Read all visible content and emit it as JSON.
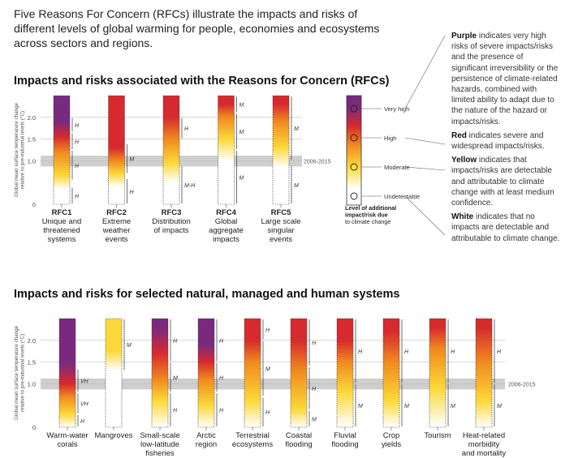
{
  "intro": "Five Reasons For Concern (RFCs) illustrate the impacts and risks of different levels of global warming for people, economies and ecosystems across sectors and regions.",
  "top_title": "Impacts and risks associated with the Reasons for Concern (RFCs)",
  "bottom_title": "Impacts and risks for selected natural, managed and human systems",
  "y_axis_label": [
    "Global mean surface temperature change",
    "relative to pre-industrial levels (°C)"
  ],
  "band_label": "2006-2015",
  "colors": {
    "white": "#ffffff",
    "yellow": "#fcd93a",
    "orange": "#f08a1e",
    "red": "#d62a2e",
    "purple": "#7a2a7e",
    "band": "#cfcfcf",
    "grid": "#bdbdbd"
  },
  "legend": {
    "levels": [
      "Very high",
      "High",
      "Moderate",
      "Undetectable"
    ],
    "title": "Level of additional impact/risk due to climate change",
    "title_lines": [
      "Level of additional",
      "impact/risk due",
      "to climate change"
    ]
  },
  "notes": [
    {
      "key": "Purple",
      "text": " indicates very high risks of severe impacts/risks and the presence of significant irreversibility or the persistence of climate-related hazards, combined with limited ability to adapt due to the nature of the hazard or impacts/risks."
    },
    {
      "key": "Red",
      "text": " indicates severe and widespread impacts/risks."
    },
    {
      "key": "Yellow",
      "text": " indicates that impacts/risks are detectable and attributable to climate change with at least medium confidence."
    },
    {
      "key": "White",
      "text": " indicates that no impacts are detectable and attributable to climate change."
    }
  ],
  "chart_data": [
    {
      "type": "bar",
      "title": "Impacts and risks associated with the Reasons for Concern (RFCs)",
      "ylabel": "Global mean surface temperature change relative to pre-industrial levels (°C)",
      "yticks": [
        0,
        1.0,
        1.5,
        2.0
      ],
      "ylim": [
        0,
        2.5
      ],
      "band": {
        "label": "2006-2015",
        "range": [
          0.87,
          1.12
        ]
      },
      "categories": [
        {
          "name": [
            "RFC1"
          ],
          "sub": [
            "Unique and",
            "threatened",
            "systems"
          ],
          "stops": [
            [
              0,
              "white"
            ],
            [
              0.35,
              "white"
            ],
            [
              0.65,
              "yellow"
            ],
            [
              1.2,
              "orange"
            ],
            [
              1.55,
              "red"
            ],
            [
              1.9,
              "purple"
            ],
            [
              2.5,
              "purple"
            ]
          ],
          "conf": [
            {
              "y": [
                0,
                0.4
              ],
              "label": "H"
            },
            {
              "y": [
                0.55,
                1.25
              ],
              "label": "H"
            },
            {
              "y": [
                1.25,
                1.65
              ],
              "label": "H"
            },
            {
              "y": [
                1.65,
                2.0
              ],
              "label": "H"
            }
          ]
        },
        {
          "name": [
            "RFC2"
          ],
          "sub": [
            "Extreme",
            "weather",
            "events"
          ],
          "stops": [
            [
              0,
              "white"
            ],
            [
              0.4,
              "white"
            ],
            [
              0.7,
              "yellow"
            ],
            [
              1.0,
              "orange"
            ],
            [
              1.3,
              "red"
            ],
            [
              2.5,
              "red"
            ]
          ],
          "conf": [
            {
              "y": [
                0,
                0.6
              ],
              "label": "H"
            },
            {
              "y": [
                0.7,
                1.4
              ],
              "label": "M"
            }
          ]
        },
        {
          "name": [
            "RFC3"
          ],
          "sub": [
            "Distribution",
            "of impacts"
          ],
          "stops": [
            [
              0,
              "white"
            ],
            [
              0.5,
              "white"
            ],
            [
              0.95,
              "yellow"
            ],
            [
              1.5,
              "orange"
            ],
            [
              2.0,
              "red"
            ],
            [
              2.5,
              "red"
            ]
          ],
          "conf": [
            {
              "y": [
                0,
                0.9
              ],
              "label": "M-H"
            },
            {
              "y": [
                1.5,
                2.0
              ],
              "label": "H"
            }
          ]
        },
        {
          "name": [
            "RFC4"
          ],
          "sub": [
            "Global",
            "aggregate",
            "impacts"
          ],
          "stops": [
            [
              0,
              "white"
            ],
            [
              1.0,
              "white"
            ],
            [
              1.5,
              "yellow"
            ],
            [
              2.0,
              "orange"
            ],
            [
              2.3,
              "red"
            ],
            [
              2.5,
              "red"
            ]
          ],
          "conf": [
            {
              "y": [
                0,
                1.25
              ],
              "label": "M"
            },
            {
              "y": [
                1.25,
                2.1
              ],
              "label": "M"
            },
            {
              "y": [
                2.1,
                2.5
              ],
              "label": "M"
            }
          ]
        },
        {
          "name": [
            "RFC5"
          ],
          "sub": [
            "Large scale",
            "singular",
            "events"
          ],
          "stops": [
            [
              0,
              "white"
            ],
            [
              0.85,
              "white"
            ],
            [
              1.3,
              "yellow"
            ],
            [
              1.9,
              "orange"
            ],
            [
              2.3,
              "red"
            ],
            [
              2.5,
              "red"
            ]
          ],
          "conf": [
            {
              "y": [
                0,
                0.9
              ],
              "label": "M"
            },
            {
              "y": [
                1.0,
                2.5
              ],
              "label": "M"
            }
          ]
        }
      ]
    },
    {
      "type": "bar",
      "title": "Impacts and risks for selected natural, managed and human systems",
      "ylabel": "Global mean surface temperature change relative to pre-industrial levels (°C)",
      "yticks": [
        0,
        1.0,
        1.5,
        2.0
      ],
      "ylim": [
        0,
        2.5
      ],
      "band": {
        "label": "2006-2015",
        "range": [
          0.87,
          1.12
        ]
      },
      "categories": [
        {
          "name": [
            "Warm-water",
            "corals"
          ],
          "stops": [
            [
              0,
              "white"
            ],
            [
              0.3,
              "yellow"
            ],
            [
              0.7,
              "orange"
            ],
            [
              1.0,
              "red"
            ],
            [
              1.5,
              "purple"
            ],
            [
              2.5,
              "purple"
            ]
          ],
          "conf": [
            {
              "y": [
                0,
                0.3
              ],
              "label": "H"
            },
            {
              "y": [
                0.3,
                0.8
              ],
              "label": "VH"
            },
            {
              "y": [
                0.8,
                1.35
              ],
              "label": "VH"
            }
          ]
        },
        {
          "name": [
            "Mangroves"
          ],
          "stops": [
            [
              0,
              "white"
            ],
            [
              1.3,
              "white"
            ],
            [
              1.75,
              "yellow"
            ],
            [
              2.5,
              "yellow"
            ]
          ],
          "conf": [
            {
              "y": [
                1.3,
                2.5
              ],
              "label": "M"
            }
          ]
        },
        {
          "name": [
            "Small-scale",
            "low-latitude",
            "fisheries"
          ],
          "stops": [
            [
              0,
              "white"
            ],
            [
              0.6,
              "yellow"
            ],
            [
              1.1,
              "orange"
            ],
            [
              1.7,
              "red"
            ],
            [
              2.3,
              "purple"
            ],
            [
              2.5,
              "purple"
            ]
          ],
          "conf": [
            {
              "y": [
                0,
                0.8
              ],
              "label": "H"
            },
            {
              "y": [
                0.8,
                1.5
              ],
              "label": "M"
            },
            {
              "y": [
                1.5,
                2.5
              ],
              "label": "H"
            }
          ]
        },
        {
          "name": [
            "Arctic",
            "region"
          ],
          "stops": [
            [
              0,
              "white"
            ],
            [
              0.5,
              "yellow"
            ],
            [
              1.1,
              "orange"
            ],
            [
              1.5,
              "red"
            ],
            [
              1.9,
              "purple"
            ],
            [
              2.5,
              "purple"
            ]
          ],
          "conf": [
            {
              "y": [
                0,
                0.8
              ],
              "label": "H"
            },
            {
              "y": [
                0.8,
                1.5
              ],
              "label": "H"
            },
            {
              "y": [
                1.5,
                2.5
              ],
              "label": "H"
            }
          ]
        },
        {
          "name": [
            "Terrestrial",
            "ecosystems"
          ],
          "stops": [
            [
              0,
              "white"
            ],
            [
              0.6,
              "yellow"
            ],
            [
              1.5,
              "orange"
            ],
            [
              2.0,
              "red"
            ],
            [
              2.5,
              "red"
            ]
          ],
          "conf": [
            {
              "y": [
                0,
                0.7
              ],
              "label": "H"
            },
            {
              "y": [
                0.7,
                2.0
              ],
              "label": "M"
            },
            {
              "y": [
                2.0,
                2.5
              ],
              "label": "H"
            }
          ]
        },
        {
          "name": [
            "Coastal",
            "flooding"
          ],
          "stops": [
            [
              0,
              "white"
            ],
            [
              0.4,
              "yellow"
            ],
            [
              1.3,
              "orange"
            ],
            [
              2.0,
              "red"
            ],
            [
              2.5,
              "red"
            ]
          ],
          "conf": [
            {
              "y": [
                0,
                0.4
              ],
              "label": "M"
            },
            {
              "y": [
                0.4,
                1.4
              ],
              "label": "H"
            },
            {
              "y": [
                1.4,
                2.5
              ],
              "label": "H"
            }
          ]
        },
        {
          "name": [
            "Fluvial",
            "flooding"
          ],
          "stops": [
            [
              0,
              "white"
            ],
            [
              0.8,
              "yellow"
            ],
            [
              1.5,
              "orange"
            ],
            [
              2.0,
              "red"
            ],
            [
              2.5,
              "red"
            ]
          ],
          "conf": [
            {
              "y": [
                0,
                1.0
              ],
              "label": "M"
            },
            {
              "y": [
                1.0,
                2.5
              ],
              "label": "H"
            }
          ]
        },
        {
          "name": [
            "Crop",
            "yields"
          ],
          "stops": [
            [
              0,
              "white"
            ],
            [
              0.6,
              "yellow"
            ],
            [
              1.5,
              "orange"
            ],
            [
              2.2,
              "red"
            ],
            [
              2.5,
              "red"
            ]
          ],
          "conf": [
            {
              "y": [
                0,
                1.0
              ],
              "label": "M"
            },
            {
              "y": [
                1.0,
                2.5
              ],
              "label": "H"
            }
          ]
        },
        {
          "name": [
            "Tourism"
          ],
          "stops": [
            [
              0,
              "white"
            ],
            [
              0.9,
              "yellow"
            ],
            [
              1.8,
              "orange"
            ],
            [
              2.3,
              "red"
            ],
            [
              2.5,
              "red"
            ]
          ],
          "conf": [
            {
              "y": [
                0,
                1.0
              ],
              "label": "M"
            },
            {
              "y": [
                1.0,
                2.5
              ],
              "label": "H"
            }
          ]
        },
        {
          "name": [
            "Heat-related",
            "morbidity",
            "and mortality"
          ],
          "stops": [
            [
              0,
              "white"
            ],
            [
              0.6,
              "yellow"
            ],
            [
              1.5,
              "orange"
            ],
            [
              2.3,
              "red"
            ],
            [
              2.5,
              "red"
            ]
          ],
          "conf": [
            {
              "y": [
                0,
                1.0
              ],
              "label": "M"
            },
            {
              "y": [
                1.0,
                2.5
              ],
              "label": "H"
            }
          ]
        }
      ]
    }
  ]
}
